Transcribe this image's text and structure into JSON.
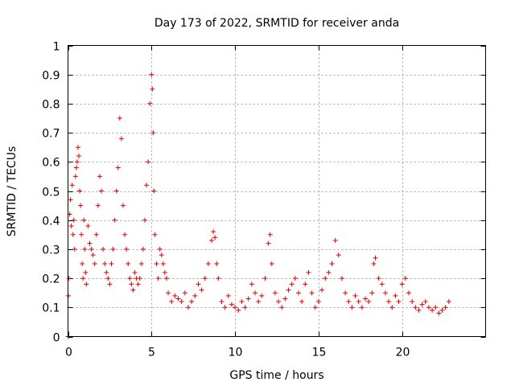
{
  "chart_data": {
    "type": "scatter",
    "title": "Day 173 of 2022, SRMTID for receiver anda",
    "xlabel": "GPS time / hours",
    "ylabel": "SRMTID / TECUs",
    "xlim": [
      0,
      25
    ],
    "ylim": [
      0,
      1
    ],
    "xticks": [
      0,
      5,
      10,
      15,
      20
    ],
    "xtick_labels": [
      "0",
      "5",
      "10",
      "15",
      "20"
    ],
    "yticks": [
      0,
      0.1,
      0.2,
      0.3,
      0.4,
      0.5,
      0.6,
      0.7,
      0.8,
      0.9,
      1
    ],
    "ytick_labels": [
      "0",
      "0.1",
      "0.2",
      "0.3",
      "0.4",
      "0.5",
      "0.6",
      "0.7",
      "0.8",
      "0.9",
      "1"
    ],
    "grid": true,
    "marker": "+",
    "series": [
      {
        "name": "SRMTID",
        "color": "#e00000",
        "x": [
          0.0,
          0.02,
          0.05,
          0.1,
          0.15,
          0.2,
          0.25,
          0.3,
          0.35,
          0.4,
          0.45,
          0.5,
          0.55,
          0.6,
          0.65,
          0.7,
          0.75,
          0.8,
          0.85,
          0.9,
          0.95,
          1.0,
          1.05,
          1.1,
          1.2,
          1.3,
          1.4,
          1.5,
          1.6,
          1.7,
          1.8,
          1.9,
          2.0,
          2.1,
          2.2,
          2.3,
          2.4,
          2.5,
          2.6,
          2.7,
          2.8,
          2.9,
          3.0,
          3.1,
          3.2,
          3.3,
          3.4,
          3.5,
          3.6,
          3.7,
          3.8,
          3.9,
          4.0,
          4.1,
          4.2,
          4.3,
          4.4,
          4.5,
          4.6,
          4.7,
          4.8,
          4.9,
          5.0,
          5.05,
          5.1,
          5.15,
          5.2,
          5.3,
          5.4,
          5.5,
          5.6,
          5.7,
          5.8,
          5.9,
          6.0,
          6.2,
          6.4,
          6.6,
          6.8,
          7.0,
          7.2,
          7.4,
          7.6,
          7.8,
          8.0,
          8.2,
          8.4,
          8.6,
          8.7,
          8.8,
          8.9,
          9.0,
          9.2,
          9.4,
          9.6,
          9.8,
          10.0,
          10.2,
          10.4,
          10.6,
          10.8,
          11.0,
          11.2,
          11.4,
          11.6,
          11.8,
          12.0,
          12.1,
          12.2,
          12.4,
          12.6,
          12.8,
          13.0,
          13.2,
          13.4,
          13.6,
          13.8,
          14.0,
          14.2,
          14.4,
          14.6,
          14.8,
          15.0,
          15.2,
          15.4,
          15.6,
          15.8,
          16.0,
          16.2,
          16.4,
          16.6,
          16.8,
          17.0,
          17.2,
          17.4,
          17.6,
          17.8,
          18.0,
          18.2,
          18.3,
          18.4,
          18.6,
          18.8,
          19.0,
          19.2,
          19.4,
          19.6,
          19.8,
          20.0,
          20.2,
          20.4,
          20.6,
          20.8,
          21.0,
          21.2,
          21.4,
          21.6,
          21.8,
          22.0,
          22.2,
          22.4,
          22.6,
          22.8
        ],
        "y": [
          0.0,
          0.14,
          0.2,
          0.42,
          0.47,
          0.38,
          0.52,
          0.35,
          0.4,
          0.3,
          0.55,
          0.58,
          0.6,
          0.65,
          0.62,
          0.5,
          0.45,
          0.35,
          0.25,
          0.2,
          0.4,
          0.3,
          0.22,
          0.18,
          0.38,
          0.32,
          0.3,
          0.28,
          0.25,
          0.35,
          0.45,
          0.55,
          0.5,
          0.3,
          0.25,
          0.22,
          0.2,
          0.18,
          0.25,
          0.3,
          0.4,
          0.5,
          0.58,
          0.75,
          0.68,
          0.45,
          0.35,
          0.3,
          0.25,
          0.2,
          0.18,
          0.16,
          0.22,
          0.2,
          0.18,
          0.2,
          0.25,
          0.3,
          0.4,
          0.52,
          0.6,
          0.8,
          0.9,
          0.85,
          0.7,
          0.5,
          0.35,
          0.25,
          0.2,
          0.3,
          0.28,
          0.25,
          0.22,
          0.2,
          0.15,
          0.12,
          0.14,
          0.13,
          0.12,
          0.15,
          0.1,
          0.12,
          0.14,
          0.18,
          0.16,
          0.2,
          0.25,
          0.33,
          0.36,
          0.34,
          0.25,
          0.2,
          0.12,
          0.1,
          0.14,
          0.11,
          0.1,
          0.09,
          0.12,
          0.1,
          0.13,
          0.18,
          0.15,
          0.12,
          0.14,
          0.2,
          0.32,
          0.35,
          0.25,
          0.15,
          0.12,
          0.1,
          0.13,
          0.16,
          0.18,
          0.2,
          0.15,
          0.12,
          0.18,
          0.22,
          0.15,
          0.1,
          0.12,
          0.16,
          0.2,
          0.22,
          0.25,
          0.33,
          0.28,
          0.2,
          0.15,
          0.12,
          0.1,
          0.14,
          0.12,
          0.1,
          0.13,
          0.12,
          0.15,
          0.25,
          0.27,
          0.2,
          0.18,
          0.15,
          0.12,
          0.1,
          0.14,
          0.12,
          0.18,
          0.2,
          0.15,
          0.12,
          0.1,
          0.09,
          0.11,
          0.12,
          0.1,
          0.09,
          0.1,
          0.08,
          0.09,
          0.1,
          0.12
        ]
      }
    ]
  }
}
